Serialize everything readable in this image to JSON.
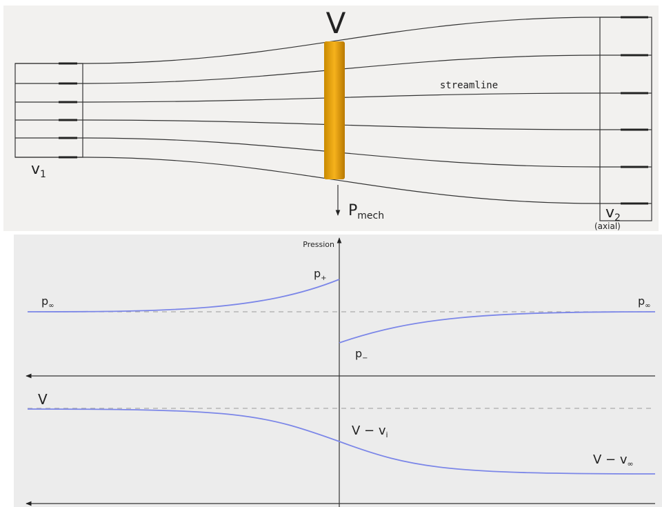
{
  "top": {
    "disk_label": "V",
    "streamline_label": "streamline",
    "inlet_label": {
      "main": "v",
      "sub": "1"
    },
    "power_label": {
      "main": "P",
      "sub": "mech"
    },
    "outlet_label": {
      "main": "v",
      "sub": "2"
    },
    "outlet_note": "(axial)"
  },
  "bottom": {
    "axis_label": "Pression",
    "p_inf_left": {
      "main": "p",
      "sub": "∞"
    },
    "p_plus": {
      "main": "p",
      "sub": "+"
    },
    "p_inf_right": {
      "main": "p",
      "sub": "∞"
    },
    "p_minus": {
      "main": "p",
      "sub": "−"
    },
    "v_far": "V",
    "v_disk": {
      "main": "V − v",
      "sub": "i"
    },
    "v_wake": {
      "main": "V − v",
      "sub": "∞"
    }
  }
}
